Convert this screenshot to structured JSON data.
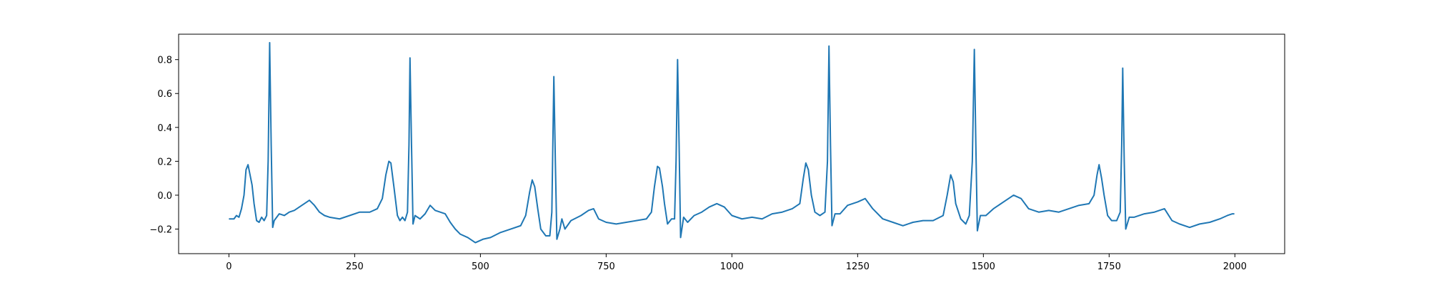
{
  "chart_data": {
    "type": "line",
    "color": "#1f77b4",
    "xlim": [
      -100,
      2099
    ],
    "ylim": [
      -0.345,
      0.95
    ],
    "xticks": [
      0,
      250,
      500,
      750,
      1000,
      1250,
      1500,
      1750,
      2000
    ],
    "yticks": [
      {
        "value": -0.2,
        "label": "−0.2"
      },
      {
        "value": 0,
        "label": "0.0"
      },
      {
        "value": 0.2,
        "label": "0.2"
      },
      {
        "value": 0.4,
        "label": "0.4"
      },
      {
        "value": 0.6,
        "label": "0.6"
      },
      {
        "value": 0.8,
        "label": "0.8"
      }
    ],
    "x": [
      0,
      10,
      15,
      20,
      25,
      30,
      34,
      38,
      42,
      46,
      50,
      55,
      60,
      65,
      70,
      75,
      78,
      81,
      84,
      87,
      90,
      100,
      110,
      120,
      130,
      140,
      150,
      160,
      170,
      180,
      190,
      200,
      220,
      240,
      260,
      280,
      295,
      305,
      312,
      318,
      322,
      328,
      335,
      340,
      345,
      350,
      355,
      358,
      360,
      363,
      366,
      370,
      380,
      390,
      400,
      410,
      420,
      430,
      440,
      450,
      460,
      475,
      490,
      505,
      520,
      540,
      560,
      580,
      590,
      598,
      603,
      608,
      614,
      620,
      630,
      638,
      642,
      646,
      649,
      652,
      658,
      662,
      668,
      680,
      700,
      715,
      725,
      735,
      750,
      770,
      790,
      810,
      830,
      840,
      846,
      852,
      856,
      862,
      866,
      872,
      880,
      886,
      889,
      892,
      895,
      898,
      904,
      912,
      925,
      940,
      955,
      970,
      985,
      1000,
      1020,
      1040,
      1060,
      1080,
      1100,
      1120,
      1135,
      1142,
      1147,
      1152,
      1158,
      1165,
      1175,
      1185,
      1190,
      1193,
      1196,
      1199,
      1205,
      1215,
      1230,
      1250,
      1265,
      1280,
      1300,
      1320,
      1340,
      1360,
      1380,
      1400,
      1420,
      1428,
      1435,
      1440,
      1445,
      1455,
      1465,
      1472,
      1478,
      1482,
      1485,
      1488,
      1494,
      1505,
      1520,
      1540,
      1560,
      1575,
      1590,
      1610,
      1630,
      1650,
      1670,
      1690,
      1710,
      1720,
      1726,
      1730,
      1735,
      1740,
      1747,
      1755,
      1765,
      1772,
      1775,
      1777,
      1780,
      1783,
      1790,
      1800,
      1820,
      1840,
      1860,
      1875,
      1890,
      1910,
      1930,
      1950,
      1970,
      1985,
      1995,
      1999
    ],
    "values": [
      -0.14,
      -0.14,
      -0.12,
      -0.13,
      -0.08,
      0.0,
      0.15,
      0.18,
      0.12,
      0.06,
      -0.05,
      -0.15,
      -0.16,
      -0.13,
      -0.15,
      -0.12,
      0.2,
      0.9,
      0.3,
      -0.19,
      -0.15,
      -0.11,
      -0.12,
      -0.1,
      -0.09,
      -0.07,
      -0.05,
      -0.03,
      -0.06,
      -0.1,
      -0.12,
      -0.13,
      -0.14,
      -0.12,
      -0.1,
      -0.1,
      -0.08,
      -0.02,
      0.12,
      0.2,
      0.19,
      0.05,
      -0.12,
      -0.15,
      -0.13,
      -0.15,
      -0.1,
      0.3,
      0.81,
      0.3,
      -0.17,
      -0.12,
      -0.14,
      -0.11,
      -0.06,
      -0.09,
      -0.1,
      -0.11,
      -0.16,
      -0.2,
      -0.23,
      -0.25,
      -0.28,
      -0.26,
      -0.25,
      -0.22,
      -0.2,
      -0.18,
      -0.12,
      0.02,
      0.09,
      0.05,
      -0.08,
      -0.2,
      -0.24,
      -0.24,
      -0.1,
      0.7,
      0.2,
      -0.26,
      -0.2,
      -0.14,
      -0.2,
      -0.15,
      -0.12,
      -0.09,
      -0.08,
      -0.14,
      -0.16,
      -0.17,
      -0.16,
      -0.15,
      -0.14,
      -0.1,
      0.05,
      0.17,
      0.16,
      0.05,
      -0.05,
      -0.17,
      -0.14,
      -0.14,
      0.2,
      0.8,
      0.3,
      -0.25,
      -0.13,
      -0.16,
      -0.12,
      -0.1,
      -0.07,
      -0.05,
      -0.07,
      -0.12,
      -0.14,
      -0.13,
      -0.14,
      -0.11,
      -0.1,
      -0.08,
      -0.05,
      0.1,
      0.19,
      0.15,
      0.0,
      -0.1,
      -0.12,
      -0.1,
      0.2,
      0.88,
      0.3,
      -0.18,
      -0.11,
      -0.11,
      -0.06,
      -0.04,
      -0.02,
      -0.08,
      -0.14,
      -0.16,
      -0.18,
      -0.16,
      -0.15,
      -0.15,
      -0.12,
      0.0,
      0.12,
      0.08,
      -0.05,
      -0.14,
      -0.17,
      -0.12,
      0.2,
      0.86,
      0.3,
      -0.21,
      -0.12,
      -0.12,
      -0.08,
      -0.04,
      0.0,
      -0.02,
      -0.08,
      -0.1,
      -0.09,
      -0.1,
      -0.08,
      -0.06,
      -0.05,
      0.0,
      0.12,
      0.18,
      0.1,
      0.0,
      -0.12,
      -0.15,
      -0.15,
      -0.1,
      0.3,
      0.75,
      0.2,
      -0.2,
      -0.13,
      -0.13,
      -0.11,
      -0.1,
      -0.08,
      -0.15,
      -0.17,
      -0.19,
      -0.17,
      -0.16,
      -0.14,
      -0.12,
      -0.11,
      -0.11
    ]
  }
}
